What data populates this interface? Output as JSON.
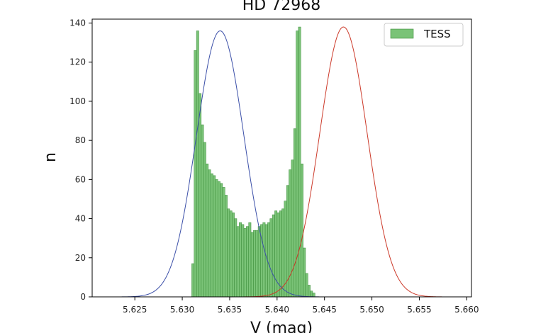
{
  "chart_data": {
    "type": "bar",
    "title": "HD 72968",
    "xlabel": "V (mag)",
    "ylabel": "n",
    "xlim": [
      5.6205,
      5.6605
    ],
    "ylim": [
      0,
      142
    ],
    "xticks": [
      "5.625",
      "5.630",
      "5.635",
      "5.640",
      "5.645",
      "5.650",
      "5.655",
      "5.660"
    ],
    "yticks": [
      "0",
      "20",
      "40",
      "60",
      "80",
      "100",
      "120",
      "140"
    ],
    "legend": {
      "position": "top-right",
      "entries": [
        "TESS"
      ]
    },
    "grid": false,
    "histogram": {
      "name": "TESS",
      "color": "#4daf4a",
      "bin_width": 0.00025,
      "bin_start": 5.631,
      "counts": [
        17,
        126,
        136,
        104,
        88,
        79,
        68,
        65,
        63,
        62,
        60,
        59,
        58,
        56,
        52,
        45,
        44,
        43,
        40,
        36,
        38,
        37,
        35,
        36,
        38,
        33,
        34,
        34,
        36,
        37,
        38,
        37,
        38,
        40,
        42,
        44,
        43,
        44,
        45,
        49,
        57,
        65,
        70,
        86,
        136,
        138,
        68,
        25,
        12,
        6,
        3,
        2
      ]
    },
    "curves": [
      {
        "color": "#3b4fa8",
        "mu": 5.634,
        "sigma": 0.0025,
        "peak": 136
      },
      {
        "color": "#cc3a2a",
        "mu": 5.647,
        "sigma": 0.0025,
        "peak": 138
      }
    ]
  }
}
